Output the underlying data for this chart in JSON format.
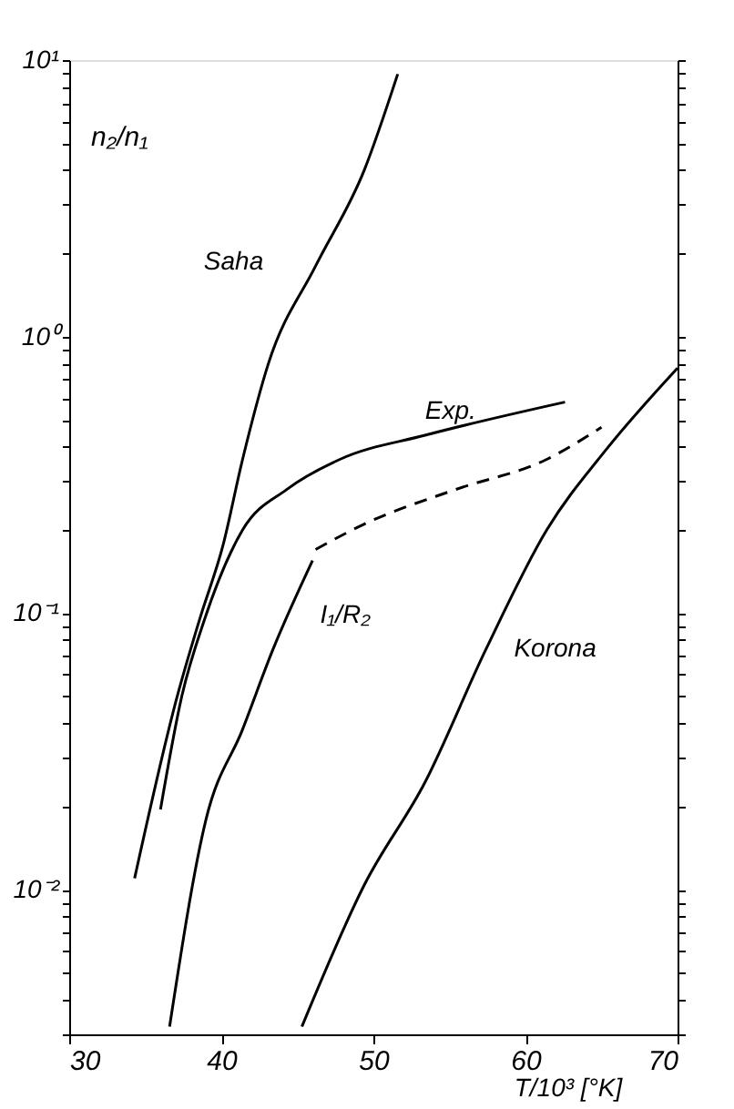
{
  "chart_data": {
    "type": "line",
    "xlabel": "T/10³ [°K]",
    "ylabel": "n₂/n₁",
    "log": "y",
    "grid": false,
    "marker": "none",
    "xlim": [
      30,
      70
    ],
    "xticks": [
      30,
      40,
      50,
      60,
      70
    ],
    "ylim": [
      0.003,
      10
    ],
    "yticks": [
      {
        "value": 0.003,
        "label": null
      },
      {
        "value": 0.004,
        "label": null
      },
      {
        "value": 0.005,
        "label": null
      },
      {
        "value": 0.006,
        "label": null
      },
      {
        "value": 0.007,
        "label": null
      },
      {
        "value": 0.008,
        "label": null
      },
      {
        "value": 0.009,
        "label": null
      },
      {
        "value": 0.01,
        "label": "10⁻²"
      },
      {
        "value": 0.02,
        "label": null
      },
      {
        "value": 0.03,
        "label": null
      },
      {
        "value": 0.04,
        "label": null
      },
      {
        "value": 0.05,
        "label": null
      },
      {
        "value": 0.06,
        "label": null
      },
      {
        "value": 0.07,
        "label": null
      },
      {
        "value": 0.08,
        "label": null
      },
      {
        "value": 0.09,
        "label": null
      },
      {
        "value": 0.1,
        "label": "10⁻¹"
      },
      {
        "value": 0.2,
        "label": null
      },
      {
        "value": 0.3,
        "label": null
      },
      {
        "value": 0.4,
        "label": null
      },
      {
        "value": 0.5,
        "label": null
      },
      {
        "value": 0.6,
        "label": null
      },
      {
        "value": 0.7,
        "label": null
      },
      {
        "value": 0.8,
        "label": null
      },
      {
        "value": 0.9,
        "label": null
      },
      {
        "value": 1,
        "label": "10⁰"
      },
      {
        "value": 2,
        "label": null
      },
      {
        "value": 3,
        "label": null
      },
      {
        "value": 4,
        "label": null
      },
      {
        "value": 5,
        "label": null
      },
      {
        "value": 6,
        "label": null
      },
      {
        "value": 7,
        "label": null
      },
      {
        "value": 8,
        "label": null
      },
      {
        "value": 9,
        "label": null
      },
      {
        "value": 10,
        "label": "10¹"
      }
    ],
    "series": [
      {
        "name": "Saha",
        "color": "#000000",
        "line_style": "solid",
        "x": [
          34.3,
          37.1,
          38.6,
          40.1,
          41.4,
          43.1,
          46.2,
          49.4,
          51.6
        ],
        "values": [
          0.011,
          0.05,
          0.096,
          0.175,
          0.36,
          0.8,
          1.8,
          4.0,
          8.9
        ]
      },
      {
        "name": "Exp.",
        "color": "#000000",
        "line_style": "solid",
        "x": [
          36.0,
          37.4,
          38.9,
          41.4,
          44.3,
          47.8,
          53.4,
          62.6
        ],
        "values": [
          0.0195,
          0.05,
          0.095,
          0.2,
          0.28,
          0.36,
          0.44,
          0.58
        ]
      },
      {
        "name": "I₁/R₂",
        "color": "#000000",
        "line_style": "solid",
        "x": [
          36.6,
          39.0,
          41.4,
          43.4,
          46.0
        ],
        "values": [
          0.0032,
          0.018,
          0.038,
          0.074,
          0.155
        ]
      },
      {
        "color": "#000000",
        "line_style": "dashed",
        "x": [
          46.2,
          49.4,
          55.4,
          61.4,
          65.0
        ],
        "values": [
          0.17,
          0.21,
          0.28,
          0.36,
          0.47
        ]
      },
      {
        "name": "Korona",
        "color": "#000000",
        "line_style": "solid",
        "x": [
          45.3,
          49.4,
          53.4,
          57.4,
          61.4,
          65.3,
          70.0
        ],
        "values": [
          0.0032,
          0.0104,
          0.0245,
          0.074,
          0.2,
          0.39,
          0.77
        ]
      }
    ]
  }
}
